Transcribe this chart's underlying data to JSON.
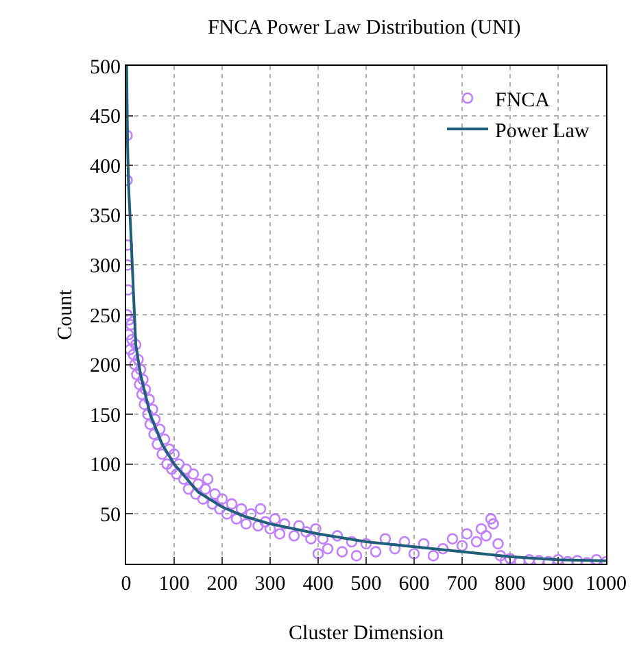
{
  "chart_data": {
    "type": "scatter",
    "title": "FNCA Power Law Distribution (UNI)",
    "xlabel": "Cluster Dimension",
    "ylabel": "Count",
    "xlim": [
      0,
      1000
    ],
    "xticks": [
      0,
      100,
      200,
      300,
      400,
      500,
      600,
      700,
      800,
      900,
      1000
    ],
    "ylim": [
      0,
      500
    ],
    "yticks": [
      50,
      100,
      150,
      200,
      250,
      300,
      350,
      400,
      450,
      500
    ],
    "grid": true,
    "legend": "top right",
    "marker": "circle",
    "series": [
      {
        "name": "FNCA",
        "color": "#c080ff",
        "x": [
          2,
          2,
          3,
          3,
          4,
          2,
          6,
          10,
          5,
          8,
          12,
          15,
          18,
          20,
          22,
          25,
          28,
          30,
          33,
          35,
          38,
          40,
          45,
          48,
          50,
          55,
          58,
          60,
          65,
          70,
          75,
          80,
          85,
          90,
          95,
          100,
          105,
          110,
          120,
          125,
          130,
          140,
          145,
          150,
          160,
          165,
          170,
          180,
          185,
          195,
          200,
          210,
          220,
          230,
          240,
          250,
          260,
          275,
          280,
          290,
          300,
          310,
          320,
          330,
          350,
          360,
          375,
          385,
          395,
          400,
          410,
          420,
          440,
          450,
          470,
          480,
          500,
          520,
          540,
          560,
          580,
          600,
          620,
          640,
          660,
          680,
          700,
          710,
          730,
          740,
          750,
          760,
          765,
          775,
          780,
          790,
          800,
          820,
          840,
          860,
          880,
          900,
          920,
          940,
          960,
          980,
          1000
        ],
        "values": [
          430,
          385,
          320,
          300,
          275,
          250,
          245,
          240,
          230,
          215,
          225,
          210,
          200,
          220,
          190,
          205,
          180,
          195,
          170,
          185,
          160,
          175,
          150,
          165,
          140,
          155,
          130,
          145,
          120,
          135,
          110,
          125,
          100,
          115,
          95,
          110,
          90,
          100,
          85,
          95,
          75,
          90,
          70,
          80,
          65,
          75,
          85,
          60,
          70,
          55,
          65,
          50,
          60,
          45,
          55,
          40,
          50,
          38,
          55,
          42,
          35,
          45,
          30,
          40,
          28,
          38,
          32,
          25,
          35,
          10,
          25,
          15,
          28,
          12,
          22,
          8,
          20,
          12,
          25,
          15,
          22,
          10,
          20,
          8,
          15,
          25,
          18,
          30,
          22,
          35,
          28,
          45,
          40,
          20,
          8,
          3,
          5,
          2,
          4,
          3,
          2,
          4,
          2,
          3,
          1,
          4,
          2
        ]
      },
      {
        "name": "Power Law",
        "type": "line",
        "color": "#1f5f7a",
        "line_style": "solid",
        "marker": "none",
        "x": [
          1,
          3,
          5,
          10,
          20,
          30,
          50,
          75,
          100,
          150,
          200,
          250,
          300,
          400,
          500,
          600,
          700,
          800,
          900,
          1000
        ],
        "values": [
          500,
          420,
          380,
          330,
          220,
          190,
          150,
          120,
          100,
          72,
          57,
          47,
          40,
          30,
          22,
          17,
          12,
          7,
          4,
          3
        ]
      }
    ]
  }
}
